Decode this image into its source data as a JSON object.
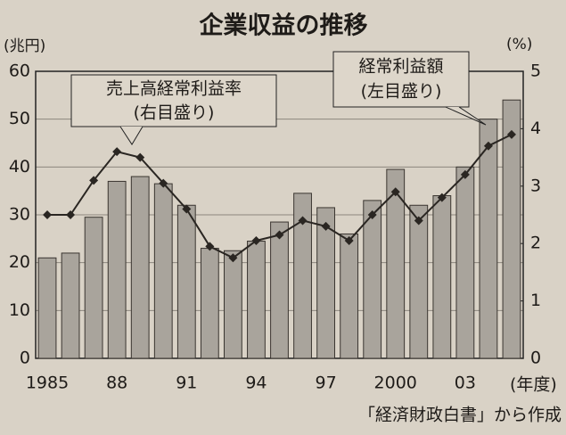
{
  "chart_data": {
    "type": "bar-line",
    "title": "企業収益の推移",
    "y_label": "(兆円)",
    "y2_label": "(%)",
    "x_label": "(年度)",
    "source": "「経済財政白書」から作成",
    "annotations": [
      {
        "lines": [
          "売上高経常利益率",
          "(右目盛り)"
        ]
      },
      {
        "lines": [
          "経常利益額",
          "(左目盛り)"
        ]
      }
    ],
    "categories": [
      "1985",
      null,
      null,
      "88",
      null,
      null,
      "91",
      null,
      null,
      "94",
      null,
      null,
      "97",
      null,
      null,
      "2000",
      null,
      null,
      "03",
      null,
      null
    ],
    "series": [
      {
        "name": "経常利益額",
        "type": "bar",
        "color": "#a9a49c",
        "values": [
          21,
          22,
          29.5,
          37,
          38,
          36.5,
          32,
          23,
          22.5,
          24.5,
          28.5,
          34.5,
          31.5,
          26,
          33,
          39.5,
          32,
          34,
          40,
          50,
          54
        ]
      },
      {
        "name": "売上高経常利益率",
        "type": "line",
        "axis": "y2",
        "color": "#2a2622",
        "values": [
          2.5,
          2.5,
          3.1,
          3.6,
          3.5,
          3.05,
          2.6,
          1.95,
          1.75,
          2.05,
          2.15,
          2.4,
          2.3,
          2.05,
          2.5,
          2.9,
          2.4,
          2.8,
          3.2,
          3.7,
          3.9
        ]
      }
    ],
    "ylim": [
      0,
      60
    ],
    "yticks": [
      0,
      10,
      20,
      30,
      40,
      50,
      60
    ],
    "y2lim": [
      0,
      5
    ],
    "y2ticks": [
      0,
      1,
      2,
      3,
      4,
      5
    ],
    "grid": true
  }
}
